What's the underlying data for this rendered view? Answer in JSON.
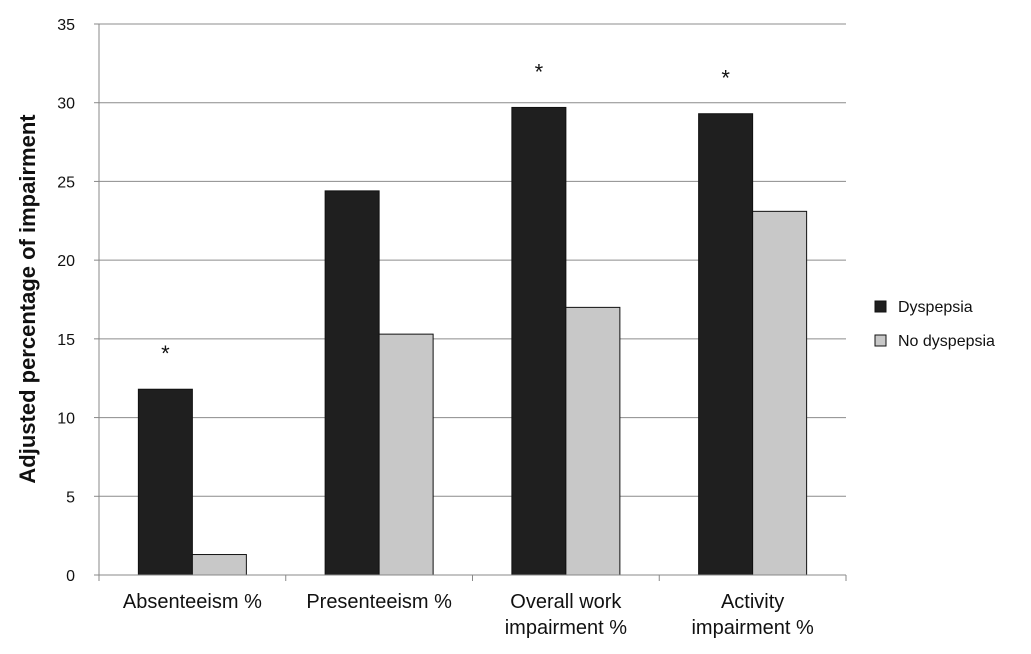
{
  "chart_data": {
    "type": "bar",
    "categories": [
      [
        "Absenteeism %"
      ],
      [
        "Presenteeism %"
      ],
      [
        "Overall work",
        "impairment %"
      ],
      [
        "Activity",
        "impairment %"
      ]
    ],
    "series": [
      {
        "name": "Dyspepsia",
        "values": [
          11.8,
          24.4,
          29.7,
          29.3
        ],
        "color": "#1f1f1f"
      },
      {
        "name": "No dyspepsia",
        "values": [
          1.3,
          15.3,
          17.0,
          23.1
        ],
        "color": "#c8c8c8"
      }
    ],
    "significance_marker": "*",
    "significant": [
      true,
      false,
      true,
      true
    ],
    "ylabel": "Adjusted percentage of impairment",
    "xlabel": "",
    "ylim": [
      0,
      35
    ],
    "yticks": [
      0,
      5,
      10,
      15,
      20,
      25,
      30,
      35
    ],
    "grid": true,
    "legend_position": "right"
  }
}
